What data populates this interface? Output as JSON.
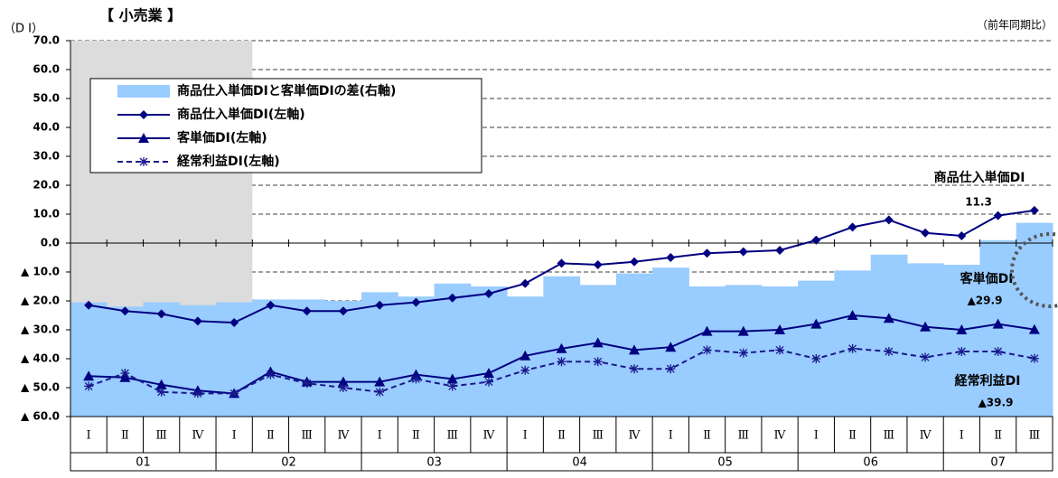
{
  "chart_data": {
    "type": "line",
    "title": "【 小売業 】",
    "y_axis_label": "（D I）",
    "note": "（前年同期比）",
    "categories": [
      "Ⅰ",
      "Ⅱ",
      "Ⅲ",
      "Ⅳ",
      "Ⅰ",
      "Ⅱ",
      "Ⅲ",
      "Ⅳ",
      "Ⅰ",
      "Ⅱ",
      "Ⅲ",
      "Ⅳ",
      "Ⅰ",
      "Ⅱ",
      "Ⅲ",
      "Ⅳ",
      "Ⅰ",
      "Ⅱ",
      "Ⅲ",
      "Ⅳ",
      "Ⅰ",
      "Ⅱ",
      "Ⅲ",
      "Ⅳ",
      "Ⅰ",
      "Ⅱ",
      "Ⅲ"
    ],
    "x_groups": [
      "01",
      "02",
      "03",
      "04",
      "05",
      "06",
      "07"
    ],
    "ylim": [
      -60,
      70
    ],
    "yticks": [
      {
        "value": 70,
        "label": "70.0"
      },
      {
        "value": 60,
        "label": "60.0"
      },
      {
        "value": 50,
        "label": "50.0"
      },
      {
        "value": 40,
        "label": "40.0"
      },
      {
        "value": 30,
        "label": "30.0"
      },
      {
        "value": 20,
        "label": "20.0"
      },
      {
        "value": 10,
        "label": "10.0"
      },
      {
        "value": 0,
        "label": "0.0"
      },
      {
        "value": -10,
        "label": "▲ 10.0"
      },
      {
        "value": -20,
        "label": "▲ 20.0"
      },
      {
        "value": -30,
        "label": "▲ 30.0"
      },
      {
        "value": -40,
        "label": "▲ 40.0"
      },
      {
        "value": -50,
        "label": "▲ 50.0"
      },
      {
        "value": -60,
        "label": "▲ 60.0"
      }
    ],
    "grid": true,
    "series": [
      {
        "name": "商品仕入単価DIと客単価DIの差(右軸)",
        "kind": "area",
        "color": "#99ccff",
        "values": [
          -20.5,
          -22,
          -20.5,
          -21.5,
          -20.5,
          -19.5,
          -19.5,
          -20,
          -17,
          -18.5,
          -14,
          -15,
          -18.5,
          -11.5,
          -14.5,
          -10.5,
          -8.5,
          -15,
          -14.5,
          -15,
          -13,
          -9.5,
          -4,
          -7,
          -7.5,
          1,
          7
        ]
      },
      {
        "name": "商品仕入単価DI(左軸)",
        "kind": "line",
        "marker": "diamond",
        "color": "#000080",
        "values": [
          -21.5,
          -23.5,
          -24.5,
          -27,
          -27.5,
          -21.5,
          -23.5,
          -23.5,
          -21.5,
          -20.5,
          -19,
          -17.5,
          -14,
          -7,
          -7.5,
          -6.5,
          -5,
          -3.5,
          -3,
          -2.5,
          1,
          5.5,
          8,
          3.5,
          2.5,
          9.5,
          11.3
        ]
      },
      {
        "name": "客単価DI(左軸)",
        "kind": "line",
        "marker": "triangle",
        "color": "#000080",
        "values": [
          -46,
          -46.5,
          -49,
          -51,
          -52,
          -44.5,
          -48,
          -48,
          -48,
          -45.5,
          -47,
          -45,
          -39,
          -36.5,
          -34.5,
          -37,
          -36,
          -30.5,
          -30.5,
          -30,
          -28,
          -25,
          -26,
          -29,
          -30,
          -28,
          -29.9
        ]
      },
      {
        "name": "経常利益DI(左軸)",
        "kind": "dashed",
        "marker": "asterisk",
        "color": "#1a1a8c",
        "values": [
          -49.5,
          -45,
          -51.5,
          -52,
          -52,
          -45.5,
          -48.5,
          -50,
          -51.5,
          -47,
          -49.5,
          -48,
          -44,
          -41,
          -41,
          -43.5,
          -43.5,
          -37,
          -38,
          -37,
          -40,
          -36.5,
          -37.5,
          -39.5,
          -37.5,
          -37.5,
          -39.9
        ]
      }
    ],
    "annotations": [
      "商品仕入単価DI",
      "11.3",
      "客単価DI",
      "▲29.9",
      "経常利益DI",
      "▲39.9"
    ]
  }
}
